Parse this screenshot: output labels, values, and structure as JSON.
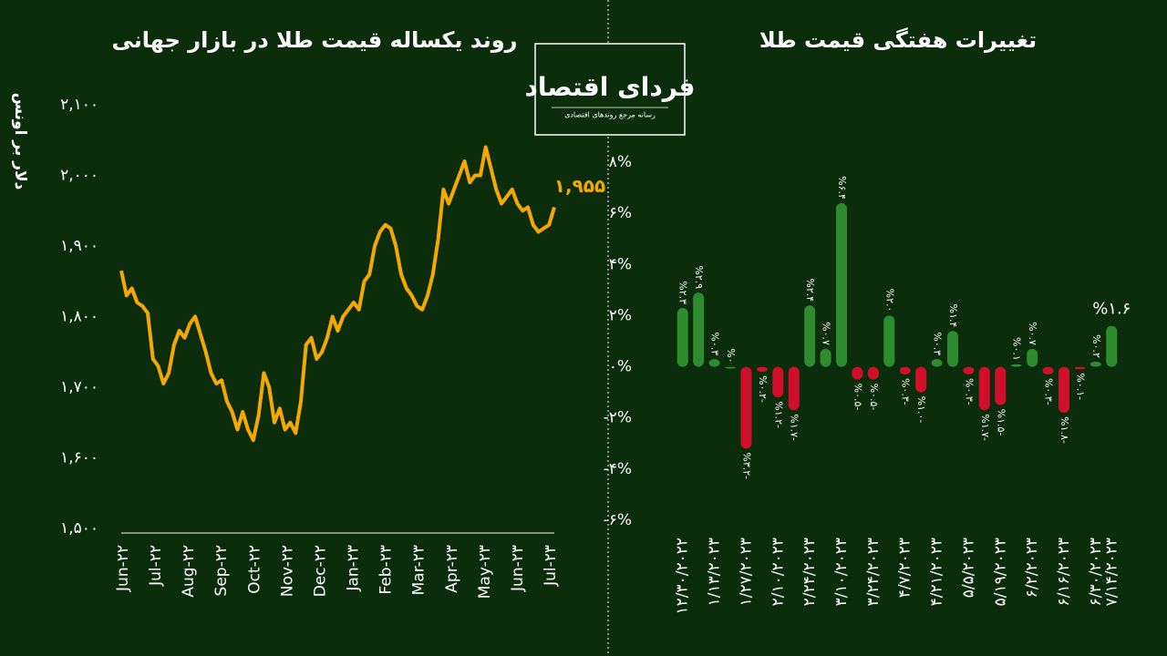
{
  "logo": {
    "name": "فردای اقتصاد",
    "tagline": "رسانه مرجع روندهای اقتصادی"
  },
  "chart_data": [
    {
      "type": "line",
      "title": "روند یکساله قیمت طلا در بازار جهانی",
      "ylabel": "دلار بر اونس",
      "color": "#f5a800",
      "xticks": [
        "Jun-۲۲",
        "Jul-۲۲",
        "Aug-۲۲",
        "Sep-۲۲",
        "Oct-۲۲",
        "Nov-۲۲",
        "Dec-۲۲",
        "Jan-۲۳",
        "Feb-۲۳",
        "Mar-۲۳",
        "Apr-۲۳",
        "May-۲۳",
        "Jun-۲۳",
        "Jul-۲۳"
      ],
      "values": [
        1865,
        1830,
        1840,
        1820,
        1815,
        1805,
        1740,
        1730,
        1705,
        1720,
        1760,
        1780,
        1770,
        1790,
        1800,
        1775,
        1750,
        1720,
        1705,
        1710,
        1680,
        1665,
        1640,
        1665,
        1640,
        1625,
        1660,
        1720,
        1700,
        1650,
        1670,
        1640,
        1650,
        1635,
        1680,
        1760,
        1770,
        1740,
        1750,
        1770,
        1800,
        1780,
        1800,
        1810,
        1820,
        1810,
        1850,
        1860,
        1900,
        1920,
        1930,
        1925,
        1900,
        1860,
        1840,
        1830,
        1815,
        1810,
        1830,
        1860,
        1910,
        1980,
        1960,
        1980,
        2000,
        2020,
        1990,
        2000,
        2000,
        2040,
        2010,
        1980,
        1960,
        1970,
        1980,
        1960,
        1950,
        1955,
        1930,
        1920,
        1925,
        1930,
        1955
      ],
      "annotation": "۱,۹۵۵",
      "ylim": [
        1500,
        2100
      ],
      "yticks": [
        {
          "value": 1500,
          "label": "۱,۵۰۰"
        },
        {
          "value": 1600,
          "label": "۱,۶۰۰"
        },
        {
          "value": 1700,
          "label": "۱,۷۰۰"
        },
        {
          "value": 1800,
          "label": "۱,۸۰۰"
        },
        {
          "value": 1900,
          "label": "۱,۹۰۰"
        },
        {
          "value": 2000,
          "label": "۲,۰۰۰"
        },
        {
          "value": 2100,
          "label": "۲,۱۰۰"
        }
      ]
    },
    {
      "type": "bar",
      "title": "تغییرات هفتگی قیمت طلا",
      "pos_color": "#2e8b2e",
      "neg_color": "#d0102a",
      "categories": [
        "۱۲/۳۰/۲۰۲۲",
        null,
        "۱/۱۳/۲۰۲۳",
        null,
        "۱/۲۷/۲۰۲۳",
        null,
        "۲/۱۰/۲۰۲۳",
        null,
        "۲/۲۴/۲۰۲۳",
        null,
        "۳/۱۰/۲۰۲۳",
        null,
        "۳/۲۴/۲۰۲۳",
        null,
        "۴/۷/۲۰۲۳",
        null,
        "۴/۲۱/۲۰۲۳",
        null,
        "۵/۵/۲۰۲۳",
        null,
        "۵/۱۹/۲۰۲۳",
        null,
        "۶/۲/۲۰۲۳",
        null,
        "۶/۱۶/۲۰۲۳",
        null,
        "۶/۳۰/۲۰۲۳",
        "۷/۱۴/۲۰۲۳"
      ],
      "values": [
        2.3,
        2.9,
        0.3,
        0,
        -3.2,
        -0.2,
        -1.2,
        -1.7,
        2.4,
        0.7,
        6.4,
        -0.5,
        -0.5,
        2.0,
        -0.3,
        -1.0,
        0.3,
        1.4,
        -0.3,
        -1.7,
        -1.5,
        0.1,
        0.7,
        -0.3,
        -1.8,
        -0.1,
        0.2,
        1.6
      ],
      "value_labels": [
        "%۲.۳",
        "%۲.۹",
        "%۰.۳",
        "%۰",
        "%۳.۲-",
        "%۰.۲-",
        "%۱.۲-",
        "%۱.۷-",
        "%۲.۴",
        "%۰.۷",
        "%۶.۴",
        "%۰.۵-",
        "%۰.۵-",
        "%۲.۰",
        "%۰.۳-",
        "%۱.۰-",
        "%۰.۳",
        "%۱.۴",
        "%۰.۳-",
        "%۱.۷-",
        "%۱.۵-",
        "%۰.۱",
        "%۰.۷",
        "%۰.۳-",
        "%۱.۸-",
        "%۰.۱-",
        "%۰.۲",
        "%۱.۶"
      ],
      "ylim": [
        -6,
        8
      ],
      "yticks": [
        {
          "value": -6,
          "label": "-۶%"
        },
        {
          "value": -4,
          "label": "-۴%"
        },
        {
          "value": -2,
          "label": "-۲%"
        },
        {
          "value": 0,
          "label": "۰%"
        },
        {
          "value": 2,
          "label": "۲%"
        },
        {
          "value": 4,
          "label": "۴%"
        },
        {
          "value": 6,
          "label": "۶%"
        },
        {
          "value": 8,
          "label": "۸%"
        }
      ]
    }
  ]
}
